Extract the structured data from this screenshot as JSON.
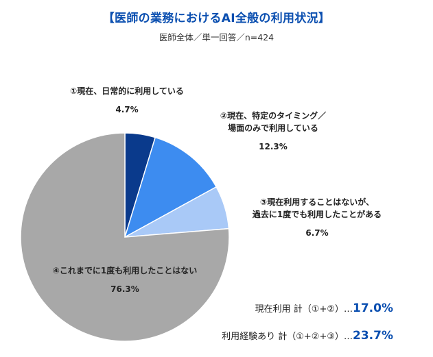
{
  "header": {
    "title": "【医師の業務におけるAI全般の利用状況】",
    "subtitle": "医師全体／単一回答／n=424"
  },
  "chart_data": {
    "type": "pie",
    "title": "【医師の業務におけるAI全般の利用状況】",
    "subtitle": "医師全体／単一回答／n=424",
    "start_angle": "12 o'clock, clockwise",
    "slices": [
      {
        "label_line1": "①現在、日常的に利用している",
        "label_line2": "",
        "value": 4.7,
        "value_label": "4.7%",
        "color": "#0a3a8c"
      },
      {
        "label_line1": "②現在、特定のタイミング／",
        "label_line2": "場面のみで利用している",
        "value": 12.3,
        "value_label": "12.3%",
        "color": "#3d8cf0"
      },
      {
        "label_line1": "③現在利用することはないが、",
        "label_line2": "過去に1度でも利用したことがある",
        "value": 6.7,
        "value_label": "6.7%",
        "color": "#a9c9f7"
      },
      {
        "label_line1": "④これまでに1度も利用したことはない",
        "label_line2": "",
        "value": 76.3,
        "value_label": "76.3%",
        "color": "#a8a8a8"
      }
    ],
    "summary": [
      {
        "label": "現在利用 計（①+②）…",
        "value": "17.0%"
      },
      {
        "label": "利用経験あり 計（①+②+③）…",
        "value": "23.7%"
      }
    ]
  }
}
